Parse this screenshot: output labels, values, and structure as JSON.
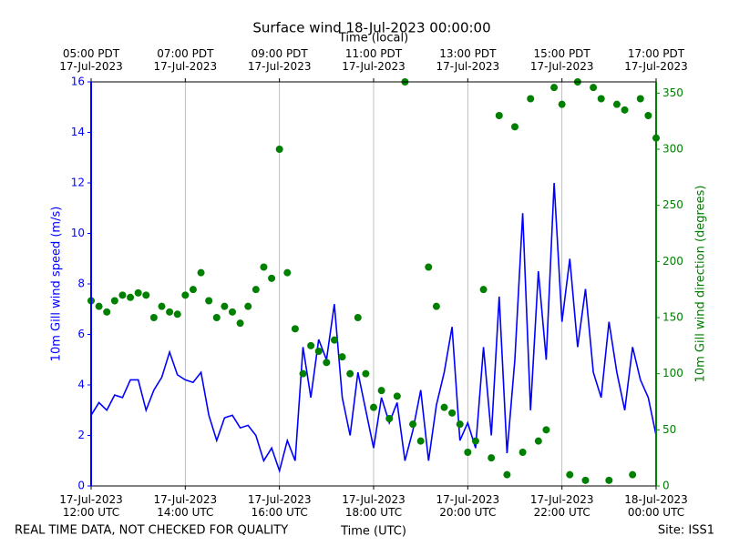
{
  "chart_data": {
    "type": "line_scatter_dual",
    "title": "Surface wind 18-Jul-2023 00:00:00",
    "x_label": "Time (UTC)",
    "x2_label": "Time (local)",
    "y_label": "10m Gill wind speed (m/s)",
    "y2_label": "10m Gill wind direction (degrees)",
    "footer_left": "REAL TIME DATA, NOT CHECKED FOR QUALITY",
    "footer_right": "Site: ISS1",
    "xlim": [
      "2023-07-17T12:00Z",
      "2023-07-18T00:00Z"
    ],
    "xticks": [
      {
        "value": "2023-07-17T12:00Z",
        "label": "17-Jul-2023\n12:00 UTC"
      },
      {
        "value": "2023-07-17T14:00Z",
        "label": "17-Jul-2023\n14:00 UTC"
      },
      {
        "value": "2023-07-17T16:00Z",
        "label": "17-Jul-2023\n16:00 UTC"
      },
      {
        "value": "2023-07-17T18:00Z",
        "label": "17-Jul-2023\n18:00 UTC"
      },
      {
        "value": "2023-07-17T20:00Z",
        "label": "17-Jul-2023\n20:00 UTC"
      },
      {
        "value": "2023-07-17T22:00Z",
        "label": "17-Jul-2023\n22:00 UTC"
      },
      {
        "value": "2023-07-18T00:00Z",
        "label": "18-Jul-2023\n00:00 UTC"
      }
    ],
    "x2ticks": [
      {
        "value": "2023-07-17T12:00Z",
        "label": "05:00 PDT\n17-Jul-2023"
      },
      {
        "value": "2023-07-17T14:00Z",
        "label": "07:00 PDT\n17-Jul-2023"
      },
      {
        "value": "2023-07-17T16:00Z",
        "label": "09:00 PDT\n17-Jul-2023"
      },
      {
        "value": "2023-07-17T18:00Z",
        "label": "11:00 PDT\n17-Jul-2023"
      },
      {
        "value": "2023-07-17T20:00Z",
        "label": "13:00 PDT\n17-Jul-2023"
      },
      {
        "value": "2023-07-17T22:00Z",
        "label": "15:00 PDT\n17-Jul-2023"
      },
      {
        "value": "2023-07-18T00:00Z",
        "label": "17:00 PDT\n17-Jul-2023"
      }
    ],
    "xgrid": true,
    "ylim": [
      0,
      16
    ],
    "yticks": [
      0,
      2,
      4,
      6,
      8,
      10,
      12,
      14,
      16
    ],
    "y2lim": [
      0,
      360
    ],
    "y2ticks": [
      0,
      50,
      100,
      150,
      200,
      250,
      300,
      350
    ],
    "x": [
      "2023-07-17T12:00Z",
      "2023-07-17T12:10Z",
      "2023-07-17T12:20Z",
      "2023-07-17T12:30Z",
      "2023-07-17T12:40Z",
      "2023-07-17T12:50Z",
      "2023-07-17T13:00Z",
      "2023-07-17T13:10Z",
      "2023-07-17T13:20Z",
      "2023-07-17T13:30Z",
      "2023-07-17T13:40Z",
      "2023-07-17T13:50Z",
      "2023-07-17T14:00Z",
      "2023-07-17T14:10Z",
      "2023-07-17T14:20Z",
      "2023-07-17T14:30Z",
      "2023-07-17T14:40Z",
      "2023-07-17T14:50Z",
      "2023-07-17T15:00Z",
      "2023-07-17T15:10Z",
      "2023-07-17T15:20Z",
      "2023-07-17T15:30Z",
      "2023-07-17T15:40Z",
      "2023-07-17T15:50Z",
      "2023-07-17T16:00Z",
      "2023-07-17T16:10Z",
      "2023-07-17T16:20Z",
      "2023-07-17T16:30Z",
      "2023-07-17T16:40Z",
      "2023-07-17T16:50Z",
      "2023-07-17T17:00Z",
      "2023-07-17T17:10Z",
      "2023-07-17T17:20Z",
      "2023-07-17T17:30Z",
      "2023-07-17T17:40Z",
      "2023-07-17T17:50Z",
      "2023-07-17T18:00Z",
      "2023-07-17T18:10Z",
      "2023-07-17T18:20Z",
      "2023-07-17T18:30Z",
      "2023-07-17T18:40Z",
      "2023-07-17T18:50Z",
      "2023-07-17T19:00Z",
      "2023-07-17T19:10Z",
      "2023-07-17T19:20Z",
      "2023-07-17T19:30Z",
      "2023-07-17T19:40Z",
      "2023-07-17T19:50Z",
      "2023-07-17T20:00Z",
      "2023-07-17T20:10Z",
      "2023-07-17T20:20Z",
      "2023-07-17T20:30Z",
      "2023-07-17T20:40Z",
      "2023-07-17T20:50Z",
      "2023-07-17T21:00Z",
      "2023-07-17T21:10Z",
      "2023-07-17T21:20Z",
      "2023-07-17T21:30Z",
      "2023-07-17T21:40Z",
      "2023-07-17T21:50Z",
      "2023-07-17T22:00Z",
      "2023-07-17T22:10Z",
      "2023-07-17T22:20Z",
      "2023-07-17T22:30Z",
      "2023-07-17T22:40Z",
      "2023-07-17T22:50Z",
      "2023-07-17T23:00Z",
      "2023-07-17T23:10Z",
      "2023-07-17T23:20Z",
      "2023-07-17T23:30Z",
      "2023-07-17T23:40Z",
      "2023-07-17T23:50Z",
      "2023-07-18T00:00Z"
    ],
    "series": [
      {
        "name": "10m Gill wind speed (m/s)",
        "kind": "line",
        "axis": "y",
        "color": "#0000ff",
        "values": [
          2.8,
          3.3,
          3.0,
          3.6,
          3.5,
          4.2,
          4.2,
          3.0,
          3.8,
          4.3,
          5.3,
          4.4,
          4.2,
          4.1,
          4.5,
          2.8,
          1.8,
          2.7,
          2.8,
          2.3,
          2.4,
          2.0,
          1.0,
          1.5,
          0.6,
          1.8,
          1.0,
          5.5,
          3.5,
          5.8,
          5.0,
          7.2,
          3.5,
          2.0,
          4.5,
          3.0,
          1.5,
          3.5,
          2.5,
          3.3,
          1.0,
          2.2,
          3.8,
          1.0,
          3.2,
          4.5,
          6.3,
          1.8,
          2.5,
          1.5,
          5.5,
          2.0,
          7.5,
          1.3,
          5.0,
          10.8,
          3.0,
          8.5,
          5.0,
          12.0,
          6.5,
          9.0,
          5.5,
          7.8,
          4.5,
          3.5,
          6.5,
          4.5,
          3.0,
          5.5,
          4.2,
          3.5,
          2.0
        ]
      },
      {
        "name": "10m Gill wind direction (degrees)",
        "kind": "scatter",
        "axis": "y2",
        "color": "#008000",
        "values": [
          165,
          160,
          155,
          165,
          170,
          168,
          172,
          170,
          150,
          160,
          155,
          153,
          170,
          175,
          190,
          165,
          150,
          160,
          155,
          145,
          160,
          175,
          195,
          185,
          300,
          190,
          140,
          100,
          125,
          120,
          110,
          130,
          115,
          100,
          150,
          100,
          70,
          85,
          60,
          80,
          360,
          55,
          40,
          195,
          160,
          70,
          65,
          55,
          30,
          40,
          175,
          25,
          330,
          10,
          320,
          30,
          345,
          40,
          50,
          355,
          340,
          10,
          360,
          5,
          355,
          345,
          5,
          340,
          335,
          10,
          345,
          330,
          310
        ]
      }
    ]
  }
}
